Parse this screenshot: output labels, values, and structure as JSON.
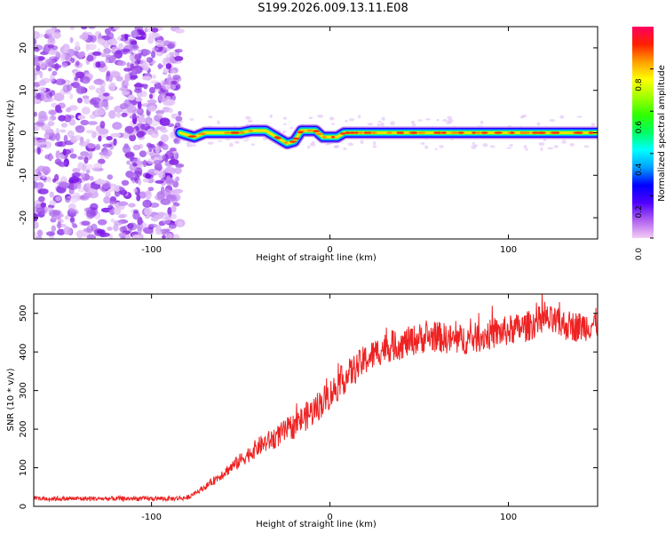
{
  "title": "S199.2026.009.13.11.E08",
  "colors": {
    "snr_line": "#ee2222",
    "frame": "#000000",
    "scatter": "#8a2be2"
  },
  "chart_data": [
    {
      "type": "heatmap",
      "name": "spectrogram",
      "xlabel": "Height of straight line (km)",
      "ylabel": "Frequency (Hz)",
      "xlim": [
        -166,
        150
      ],
      "ylim": [
        -25,
        25
      ],
      "x_ticks": [
        -100,
        0,
        100
      ],
      "y_ticks": [
        -20,
        -10,
        0,
        10,
        20
      ],
      "colorbar": {
        "label": "Normalized spectral amplitude",
        "range": [
          0.0,
          1.0
        ],
        "ticks": [
          "0.0",
          "0.2",
          "0.4",
          "0.6",
          "0.8"
        ],
        "colormap": [
          "#f5ccf5",
          "#b060f0",
          "#5000ff",
          "#0000ff",
          "#00a0ff",
          "#00ffff",
          "#00ff60",
          "#30ff00",
          "#a0ff00",
          "#ffff00",
          "#ffa000",
          "#ff2000",
          "#ff0060"
        ]
      },
      "noise_region": {
        "x_from": -166,
        "x_to": -84
      },
      "ridge": [
        {
          "x": -84,
          "f": 0
        },
        {
          "x": -76,
          "f": -1
        },
        {
          "x": -70,
          "f": 0
        },
        {
          "x": -50,
          "f": 0
        },
        {
          "x": -44,
          "f": 0.5
        },
        {
          "x": -36,
          "f": 0.5
        },
        {
          "x": -30,
          "f": -1
        },
        {
          "x": -24,
          "f": -2.5
        },
        {
          "x": -20,
          "f": -2
        },
        {
          "x": -16,
          "f": 0.5
        },
        {
          "x": -8,
          "f": 0.5
        },
        {
          "x": -4,
          "f": -1
        },
        {
          "x": 4,
          "f": -1
        },
        {
          "x": 8,
          "f": 0
        },
        {
          "x": 150,
          "f": 0
        }
      ]
    },
    {
      "type": "line",
      "name": "snr",
      "xlabel": "Height of straight line (km)",
      "ylabel": "SNR (10 * v/v)",
      "xlim": [
        -166,
        150
      ],
      "ylim": [
        0,
        550
      ],
      "x_ticks": [
        -100,
        0,
        100
      ],
      "y_ticks": [
        0,
        100,
        200,
        300,
        400,
        500
      ],
      "trend": [
        {
          "x": -166,
          "y": 20
        },
        {
          "x": -90,
          "y": 20
        },
        {
          "x": -80,
          "y": 22
        },
        {
          "x": -70,
          "y": 50
        },
        {
          "x": -60,
          "y": 85
        },
        {
          "x": -50,
          "y": 120
        },
        {
          "x": -40,
          "y": 155
        },
        {
          "x": -30,
          "y": 180
        },
        {
          "x": -20,
          "y": 210
        },
        {
          "x": -10,
          "y": 245
        },
        {
          "x": 0,
          "y": 290
        },
        {
          "x": 10,
          "y": 340
        },
        {
          "x": 20,
          "y": 380
        },
        {
          "x": 30,
          "y": 410
        },
        {
          "x": 40,
          "y": 420
        },
        {
          "x": 50,
          "y": 435
        },
        {
          "x": 60,
          "y": 440
        },
        {
          "x": 70,
          "y": 430
        },
        {
          "x": 80,
          "y": 435
        },
        {
          "x": 90,
          "y": 445
        },
        {
          "x": 100,
          "y": 455
        },
        {
          "x": 110,
          "y": 465
        },
        {
          "x": 120,
          "y": 485
        },
        {
          "x": 130,
          "y": 470
        },
        {
          "x": 140,
          "y": 465
        },
        {
          "x": 150,
          "y": 475
        }
      ],
      "noise_amplitude": 40
    }
  ]
}
